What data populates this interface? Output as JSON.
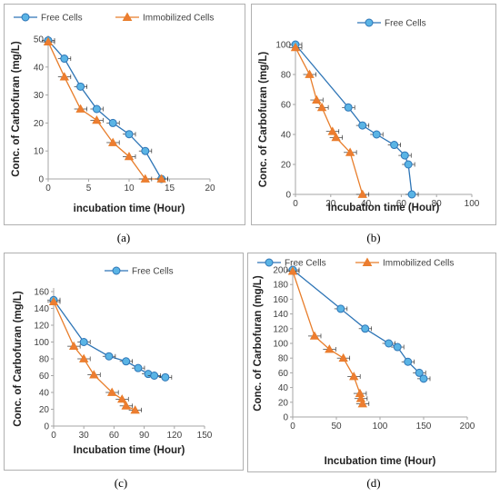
{
  "colors": {
    "free": "#2e75b6",
    "free_fill": "#5ab4e5",
    "immobilized": "#e87d2a",
    "immobilized_fill": "#ed7d31",
    "axis": "#a6a6a6",
    "grid": "#d9d9d9"
  },
  "captions": [
    "(a)",
    "(b)",
    "(c)",
    "(d)"
  ],
  "chart_data": [
    {
      "type": "line",
      "panel": "(a)",
      "xlabel": "incubation time (Hour)",
      "ylabel": "Conc. of Carbofuran (mg/L)",
      "xlim": [
        0,
        20
      ],
      "ylim": [
        0,
        50
      ],
      "xticks": [
        0,
        5,
        10,
        15,
        20
      ],
      "yticks": [
        0,
        10,
        20,
        30,
        40,
        50
      ],
      "legend": [
        "Free Cells",
        "Immobilized Cells"
      ],
      "series": [
        {
          "name": "Free Cells",
          "x": [
            0,
            2,
            4,
            6,
            8,
            10,
            12,
            14
          ],
          "y": [
            49.5,
            43,
            33,
            25,
            20,
            16,
            10,
            0
          ]
        },
        {
          "name": "Immobilized Cells",
          "x": [
            0,
            2,
            4,
            6,
            8,
            10,
            12,
            14
          ],
          "y": [
            49,
            36.5,
            25,
            21,
            13,
            8,
            0,
            0
          ]
        }
      ]
    },
    {
      "type": "line",
      "panel": "(b)",
      "xlabel": "Incubation time (Hour)",
      "ylabel": "Conc. of Carbofuran (mg/L)",
      "xlim": [
        0,
        100
      ],
      "ylim": [
        0,
        100
      ],
      "xticks": [
        0,
        20,
        40,
        60,
        80,
        100
      ],
      "yticks": [
        0,
        20,
        40,
        60,
        80,
        100
      ],
      "legend": [
        "Free Cells"
      ],
      "series": [
        {
          "name": "Free Cells",
          "x": [
            0,
            30,
            38,
            46,
            56,
            62,
            64,
            66
          ],
          "y": [
            100,
            58,
            46,
            40,
            33,
            26,
            20,
            0
          ]
        },
        {
          "name": "",
          "x": [
            0,
            8,
            12,
            15,
            21,
            23,
            31,
            38
          ],
          "y": [
            98,
            80,
            63,
            58,
            42,
            38,
            28,
            0
          ]
        }
      ]
    },
    {
      "type": "line",
      "panel": "(c)",
      "xlabel": "Incubation time (Hour)",
      "ylabel": "Conc. of Carbofuran (mg/L)",
      "xlim": [
        0,
        150
      ],
      "ylim": [
        0,
        160
      ],
      "xticks": [
        0,
        30,
        60,
        90,
        120,
        150
      ],
      "yticks": [
        0,
        20,
        40,
        60,
        80,
        100,
        120,
        140,
        160
      ],
      "legend": [
        "Free Cells"
      ],
      "series": [
        {
          "name": "Free Cells",
          "x": [
            0,
            30,
            55,
            72,
            84,
            94,
            100,
            111
          ],
          "y": [
            150,
            100,
            83,
            77,
            69,
            62,
            60,
            58
          ]
        },
        {
          "name": "",
          "x": [
            0,
            20,
            30,
            40,
            58,
            68,
            72,
            81
          ],
          "y": [
            148,
            95,
            80,
            61,
            40,
            32,
            24,
            19
          ]
        }
      ]
    },
    {
      "type": "line",
      "panel": "(d)",
      "xlabel": "Incubation time (Hour)",
      "ylabel": "Conc. of Carbofuran (mg/L)",
      "xlim": [
        0,
        200
      ],
      "ylim": [
        0,
        200
      ],
      "xticks": [
        0,
        50,
        100,
        150,
        200
      ],
      "yticks": [
        0,
        20,
        40,
        60,
        80,
        100,
        120,
        140,
        160,
        180,
        200
      ],
      "legend": [
        "Free Cells",
        "Immobilized Cells"
      ],
      "series": [
        {
          "name": "Free Cells",
          "x": [
            0,
            55,
            83,
            110,
            120,
            132,
            145,
            150
          ],
          "y": [
            200,
            147,
            120,
            100,
            95,
            75,
            60,
            52
          ]
        },
        {
          "name": "Immobilized Cells",
          "x": [
            0,
            25,
            42,
            58,
            70,
            77,
            78,
            80
          ],
          "y": [
            198,
            110,
            92,
            80,
            55,
            32,
            25,
            18
          ]
        }
      ]
    }
  ]
}
